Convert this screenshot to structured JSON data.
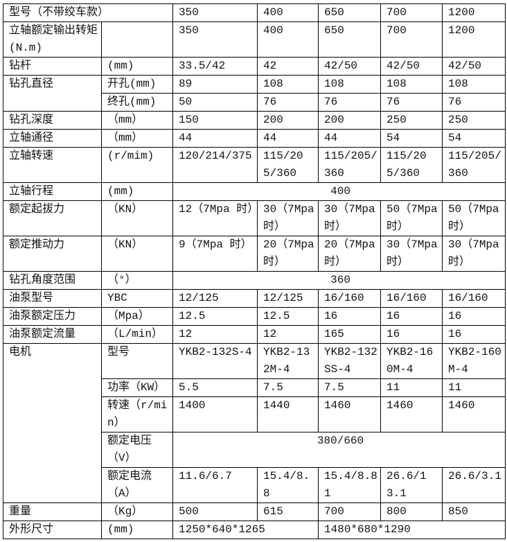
{
  "table": {
    "rows": [
      [
        "型号（不带绞车款）",
        "350",
        "400",
        "650",
        "700",
        "1200"
      ],
      [
        "立轴额定输出转矩(N.m)",
        "350",
        "400",
        "650",
        "700",
        "1200"
      ],
      [
        "钻杆",
        "(mm)",
        "33.5/42",
        "42",
        "42/50",
        "42/50",
        "42/50"
      ],
      [
        "钻孔直径",
        "开孔(mm)",
        "89",
        "108",
        "108",
        "108",
        "108"
      ],
      [
        "终孔(mm)",
        "50",
        "76",
        "76",
        "76",
        "76"
      ],
      [
        "钻孔深度",
        "（mm）",
        "150",
        "200",
        "200",
        "250",
        "250"
      ],
      [
        "立轴通径",
        "（mm）",
        "44",
        "44",
        "44",
        "54",
        "54"
      ],
      [
        "立轴转速",
        "(r/mim)",
        "120/214/375",
        "115/205/360",
        "115/205/360",
        "115/205/360",
        "115/205/360"
      ],
      [
        "立轴行程",
        "(mm)",
        "400"
      ],
      [
        "额定起拔力",
        "（KN）",
        "12（7Mpa 时）",
        "30（7Mpa时）",
        "30（7Mpa时）",
        "50（7Mpa时）",
        "50（7Mpa时）"
      ],
      [
        "额定推动力",
        "（KN）",
        "9（7Mpa 时）",
        "20（7Mpa时）",
        "20（7Mpa时）",
        "30（7Mpa时）",
        "30（7Mpa时）"
      ],
      [
        "钻孔角度范围",
        "（°）",
        "360"
      ],
      [
        "油泵型号",
        "YBC",
        "12/125",
        "12/125",
        "16/160",
        "16/160",
        "16/160"
      ],
      [
        "油泵额定压力",
        "（Mpa）",
        "12.5",
        "12.5",
        "16",
        "16",
        "16"
      ],
      [
        "油泵额定流量",
        "（L/min）",
        "12",
        "12",
        "165",
        "16",
        "16"
      ],
      [
        "电机",
        "型号",
        "YKB2-132S-4",
        "YKB2-132M-4",
        "YKB2-132SS-4",
        "YKB2-160M-4",
        "YKB2-160M-4"
      ],
      [
        "功率（KW）",
        "5.5",
        "7.5",
        "7.5",
        "11",
        "11"
      ],
      [
        "转速（r/min）",
        "1400",
        "1440",
        "1460",
        "1460",
        "1460"
      ],
      [
        "额定电压（V）",
        "380/660"
      ],
      [
        "额定电流（A）",
        "11.6/6.7",
        "15.4/8.8",
        "15.4/8.81",
        "26.6/13.1",
        "26.6/3.1"
      ],
      [
        "重量",
        "（Kg）",
        "500",
        "615",
        "700",
        "800",
        "850"
      ],
      [
        "外形尺寸",
        "(mm)",
        "1250*640*1265",
        "1480*680*1290"
      ]
    ]
  }
}
